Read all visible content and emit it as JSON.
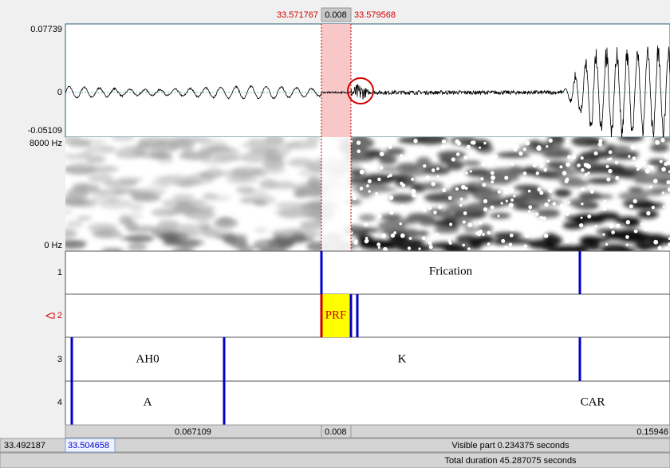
{
  "selection": {
    "start": "33.571767",
    "duration": "0.008",
    "end": "33.579568"
  },
  "waveform": {
    "max": "0.07739",
    "zero": "0",
    "min": "-0.05109"
  },
  "spectrogram": {
    "max": "8000 Hz",
    "min": "0 Hz"
  },
  "tiers": [
    {
      "number": "1",
      "intervals": [
        "Frication"
      ]
    },
    {
      "number": "2",
      "intervals": [
        "PRF"
      ]
    },
    {
      "number": "3",
      "intervals": [
        "AH0",
        "K"
      ]
    },
    {
      "number": "4",
      "intervals": [
        "A",
        "CAR"
      ]
    }
  ],
  "bottom": {
    "left_duration": "0.067109",
    "selection_duration": "0.008",
    "right_duration": "0.15946",
    "window_start": "33.492187",
    "visible_start": "33.504658",
    "visible_part": "Visible part 0.234375 seconds",
    "total_duration": "Total duration 45.287075 seconds"
  }
}
